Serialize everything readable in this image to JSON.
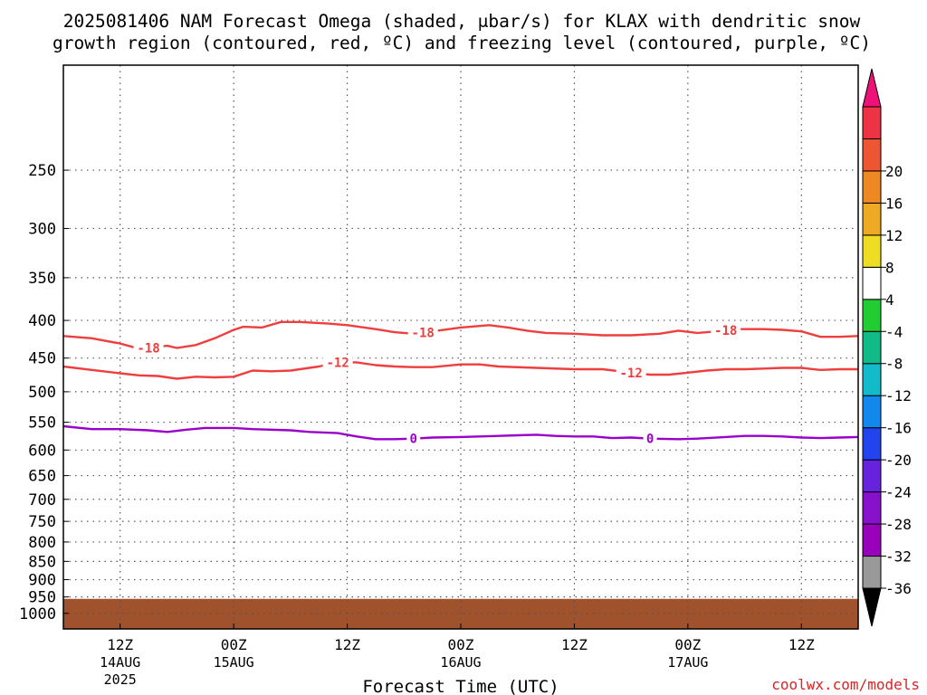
{
  "chart_data": {
    "type": "line",
    "title": {
      "line1": "2025081406 NAM Forecast Omega (shaded, μbar/s) for KLAX with dendritic snow",
      "line2": "growth region (contoured, red, ºC) and freezing level (contoured, purple, ºC)"
    },
    "xlabel": "Forecast Time (UTC)",
    "x_axis": {
      "range_hours": [
        0,
        84
      ],
      "ticks": [
        {
          "hour": 6,
          "label": "12Z",
          "sub1": "14AUG",
          "sub2": "2025"
        },
        {
          "hour": 18,
          "label": "00Z",
          "sub1": "15AUG",
          "sub2": ""
        },
        {
          "hour": 30,
          "label": "12Z",
          "sub1": "",
          "sub2": ""
        },
        {
          "hour": 42,
          "label": "00Z",
          "sub1": "16AUG",
          "sub2": ""
        },
        {
          "hour": 54,
          "label": "12Z",
          "sub1": "",
          "sub2": ""
        },
        {
          "hour": 66,
          "label": "00Z",
          "sub1": "17AUG",
          "sub2": ""
        },
        {
          "hour": 78,
          "label": "12Z",
          "sub1": "",
          "sub2": ""
        }
      ]
    },
    "y_axis": {
      "scale": "log",
      "inverted": true,
      "range_hpa": [
        1050,
        180
      ],
      "ticks": [
        250,
        300,
        350,
        400,
        450,
        500,
        550,
        600,
        650,
        700,
        750,
        800,
        850,
        900,
        950,
        1000
      ]
    },
    "grid": true,
    "ground": {
      "color": "#a0522d",
      "top_hpa": 1000
    },
    "series": [
      {
        "name": "-18",
        "color": "#ee3e3e",
        "points": [
          [
            0,
            420
          ],
          [
            3,
            423
          ],
          [
            6,
            430
          ],
          [
            8,
            437
          ],
          [
            11,
            433
          ],
          [
            12,
            436
          ],
          [
            14,
            432
          ],
          [
            16,
            423
          ],
          [
            18,
            412
          ],
          [
            19,
            408
          ],
          [
            21,
            409
          ],
          [
            23,
            402
          ],
          [
            25,
            402
          ],
          [
            28,
            404
          ],
          [
            30,
            406
          ],
          [
            33,
            411
          ],
          [
            35,
            415
          ],
          [
            37,
            417
          ],
          [
            39,
            414
          ],
          [
            42,
            409
          ],
          [
            45,
            406
          ],
          [
            47,
            409
          ],
          [
            49,
            413
          ],
          [
            51,
            416
          ],
          [
            54,
            417
          ],
          [
            57,
            419
          ],
          [
            60,
            419
          ],
          [
            63,
            417
          ],
          [
            65,
            413
          ],
          [
            67,
            416
          ],
          [
            69,
            414
          ],
          [
            71,
            411
          ],
          [
            74,
            411
          ],
          [
            76,
            412
          ],
          [
            78,
            414
          ],
          [
            80,
            421
          ],
          [
            82,
            421
          ],
          [
            84,
            420
          ]
        ],
        "labels": [
          {
            "hour": 9,
            "text": "-18"
          },
          {
            "hour": 38,
            "text": "-18"
          },
          {
            "hour": 70,
            "text": "-18"
          }
        ]
      },
      {
        "name": "-12",
        "color": "#ee3e3e",
        "points": [
          [
            0,
            462
          ],
          [
            3,
            467
          ],
          [
            6,
            472
          ],
          [
            8,
            475
          ],
          [
            10,
            476
          ],
          [
            12,
            480
          ],
          [
            14,
            477
          ],
          [
            16,
            478
          ],
          [
            18,
            477
          ],
          [
            20,
            468
          ],
          [
            22,
            469
          ],
          [
            24,
            468
          ],
          [
            27,
            462
          ],
          [
            29,
            456
          ],
          [
            31,
            456
          ],
          [
            33,
            460
          ],
          [
            35,
            462
          ],
          [
            37,
            463
          ],
          [
            39,
            463
          ],
          [
            42,
            459
          ],
          [
            44,
            459
          ],
          [
            46,
            462
          ],
          [
            50,
            464
          ],
          [
            54,
            466
          ],
          [
            57,
            466
          ],
          [
            60,
            471
          ],
          [
            62,
            474
          ],
          [
            64,
            474
          ],
          [
            66,
            471
          ],
          [
            68,
            468
          ],
          [
            70,
            466
          ],
          [
            72,
            466
          ],
          [
            74,
            465
          ],
          [
            76,
            464
          ],
          [
            78,
            464
          ],
          [
            80,
            467
          ],
          [
            82,
            466
          ],
          [
            84,
            466
          ]
        ],
        "labels": [
          {
            "hour": 29,
            "text": "-12"
          },
          {
            "hour": 60,
            "text": "-12"
          }
        ]
      },
      {
        "name": "0",
        "color": "#9900cc",
        "points": [
          [
            0,
            557
          ],
          [
            3,
            562
          ],
          [
            6,
            562
          ],
          [
            9,
            564
          ],
          [
            11,
            567
          ],
          [
            13,
            563
          ],
          [
            15,
            560
          ],
          [
            18,
            560
          ],
          [
            20,
            562
          ],
          [
            24,
            564
          ],
          [
            26,
            567
          ],
          [
            29,
            569
          ],
          [
            31,
            575
          ],
          [
            33,
            580
          ],
          [
            35,
            580
          ],
          [
            37,
            579
          ],
          [
            39,
            577
          ],
          [
            42,
            576
          ],
          [
            46,
            574
          ],
          [
            48,
            573
          ],
          [
            50,
            572
          ],
          [
            52,
            574
          ],
          [
            54,
            575
          ],
          [
            56,
            575
          ],
          [
            58,
            578
          ],
          [
            60,
            577
          ],
          [
            62,
            579
          ],
          [
            65,
            580
          ],
          [
            67,
            579
          ],
          [
            70,
            576
          ],
          [
            72,
            574
          ],
          [
            74,
            574
          ],
          [
            76,
            575
          ],
          [
            78,
            577
          ],
          [
            80,
            578
          ],
          [
            82,
            577
          ],
          [
            84,
            576
          ]
        ],
        "labels": [
          {
            "hour": 37,
            "text": "0"
          },
          {
            "hour": 62,
            "text": "0"
          }
        ]
      }
    ],
    "colorbar": {
      "levels": [
        {
          "color": "#999999",
          "label": "-36"
        },
        {
          "color": "#9900bb",
          "label": "-32"
        },
        {
          "color": "#8811cc",
          "label": "-28"
        },
        {
          "color": "#6622dd",
          "label": "-24"
        },
        {
          "color": "#2244ee",
          "label": "-20"
        },
        {
          "color": "#1188ee",
          "label": "-16"
        },
        {
          "color": "#11bbcc",
          "label": "-12"
        },
        {
          "color": "#11bb88",
          "label": "-8"
        },
        {
          "color": "#22cc33",
          "label": "-4"
        },
        {
          "color": "#ffffff",
          "label": "4"
        },
        {
          "color": "#eedd22",
          "label": "8"
        },
        {
          "color": "#eeaa22",
          "label": "12"
        },
        {
          "color": "#ee8822",
          "label": "16"
        },
        {
          "color": "#ee5533",
          "label": "20"
        },
        {
          "color": "#ee3344",
          "label": ""
        }
      ],
      "low_arrow_color": "#000000",
      "high_arrow_color": "#ee1177"
    }
  },
  "credit": "coolwx.com/models"
}
